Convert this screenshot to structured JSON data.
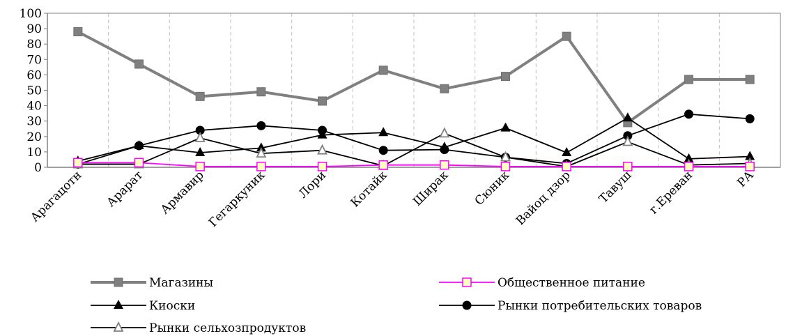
{
  "chart_data": {
    "type": "line",
    "title": "",
    "xlabel": "",
    "ylabel": "",
    "ylim": [
      0,
      100
    ],
    "yticks": [
      0,
      10,
      20,
      30,
      40,
      50,
      60,
      70,
      80,
      90,
      100
    ],
    "grid": "vertical-dashed",
    "legend_position": "bottom",
    "categories": [
      "Арагацотн",
      "Арарат",
      "Армавир",
      "Гегаркуник",
      "Лори",
      "Котайк",
      "Ширак",
      "Сюник",
      "Вайоц дзор",
      "Тавуш",
      "г.Ереван",
      "РА"
    ],
    "series": [
      {
        "name": "Магазины",
        "color": "#808080",
        "marker": "square",
        "values": [
          88,
          67,
          46,
          49,
          43,
          63,
          51,
          59,
          85,
          29,
          57,
          57
        ]
      },
      {
        "name": "Общественное питание",
        "color": "#ff00ff",
        "marker": "square-open-yellow",
        "values": [
          3,
          3,
          0.5,
          0.5,
          0.5,
          1.5,
          1.5,
          0.5,
          0.5,
          0.5,
          0.5,
          0.5
        ]
      },
      {
        "name": "Киоски",
        "color": "#000000",
        "marker": "triangle",
        "values": [
          4,
          14,
          9.5,
          12.5,
          21,
          22.5,
          13,
          25.5,
          9.5,
          32,
          5.5,
          7
        ]
      },
      {
        "name": "Рынки потребительских товаров",
        "color": "#000000",
        "marker": "circle",
        "values": [
          2,
          14,
          24,
          27,
          24,
          11,
          11.5,
          6.5,
          2.5,
          20.5,
          34.5,
          31.5
        ]
      },
      {
        "name": "Рынки сельхозпродуктов",
        "color": "#000000",
        "marker": "triangle-open",
        "values": [
          2,
          2,
          19,
          9,
          11,
          1,
          22,
          6.5,
          0.5,
          16.5,
          1.5,
          2.5
        ]
      }
    ]
  }
}
